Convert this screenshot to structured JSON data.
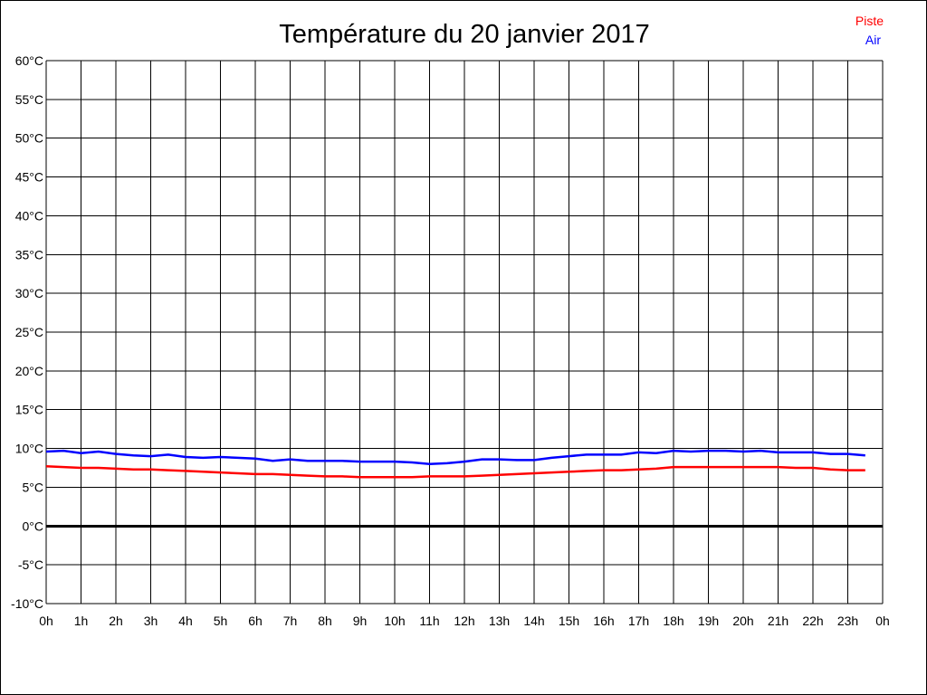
{
  "chart_data": {
    "type": "line",
    "title": "Température du 20 janvier 2017",
    "xlabel": "",
    "ylabel": "",
    "xlim": [
      0,
      24
    ],
    "ylim": [
      -10,
      60
    ],
    "grid": true,
    "legend_position": "top-right",
    "x_tick_labels": [
      "0h",
      "1h",
      "2h",
      "3h",
      "4h",
      "5h",
      "6h",
      "7h",
      "8h",
      "9h",
      "10h",
      "11h",
      "12h",
      "13h",
      "14h",
      "15h",
      "16h",
      "17h",
      "18h",
      "19h",
      "20h",
      "21h",
      "22h",
      "23h",
      "0h"
    ],
    "y_tick_values": [
      -10,
      -5,
      0,
      5,
      10,
      15,
      20,
      25,
      30,
      35,
      40,
      45,
      50,
      55,
      60
    ],
    "y_tick_labels": [
      "-10°C",
      "-5°C",
      "0°C",
      "5°C",
      "10°C",
      "15°C",
      "20°C",
      "25°C",
      "30°C",
      "35°C",
      "40°C",
      "45°C",
      "50°C",
      "55°C",
      "60°C"
    ],
    "x": [
      0,
      0.5,
      1,
      1.5,
      2,
      2.5,
      3,
      3.5,
      4,
      4.5,
      5,
      5.5,
      6,
      6.5,
      7,
      7.5,
      8,
      8.5,
      9,
      9.5,
      10,
      10.5,
      11,
      11.5,
      12,
      12.5,
      13,
      13.5,
      14,
      14.5,
      15,
      15.5,
      16,
      16.5,
      17,
      17.5,
      18,
      18.5,
      19,
      19.5,
      20,
      20.5,
      21,
      21.5,
      22,
      22.5,
      23,
      23.5
    ],
    "series": [
      {
        "name": "Piste",
        "color": "#ff0000",
        "values": [
          7.7,
          7.6,
          7.5,
          7.5,
          7.4,
          7.3,
          7.3,
          7.2,
          7.1,
          7.0,
          6.9,
          6.8,
          6.7,
          6.7,
          6.6,
          6.5,
          6.4,
          6.4,
          6.3,
          6.3,
          6.3,
          6.3,
          6.4,
          6.4,
          6.4,
          6.5,
          6.6,
          6.7,
          6.8,
          6.9,
          7.0,
          7.1,
          7.2,
          7.2,
          7.3,
          7.4,
          7.6,
          7.6,
          7.6,
          7.6,
          7.6,
          7.6,
          7.6,
          7.5,
          7.5,
          7.3,
          7.2,
          7.2
        ]
      },
      {
        "name": "Air",
        "color": "#0000ff",
        "values": [
          9.6,
          9.7,
          9.4,
          9.6,
          9.3,
          9.1,
          9.0,
          9.2,
          8.9,
          8.8,
          8.9,
          8.8,
          8.7,
          8.4,
          8.6,
          8.4,
          8.4,
          8.4,
          8.3,
          8.3,
          8.3,
          8.2,
          8.0,
          8.1,
          8.3,
          8.6,
          8.6,
          8.5,
          8.5,
          8.8,
          9.0,
          9.2,
          9.2,
          9.2,
          9.5,
          9.4,
          9.7,
          9.6,
          9.7,
          9.7,
          9.6,
          9.7,
          9.5,
          9.5,
          9.5,
          9.3,
          9.3,
          9.1
        ]
      }
    ]
  }
}
